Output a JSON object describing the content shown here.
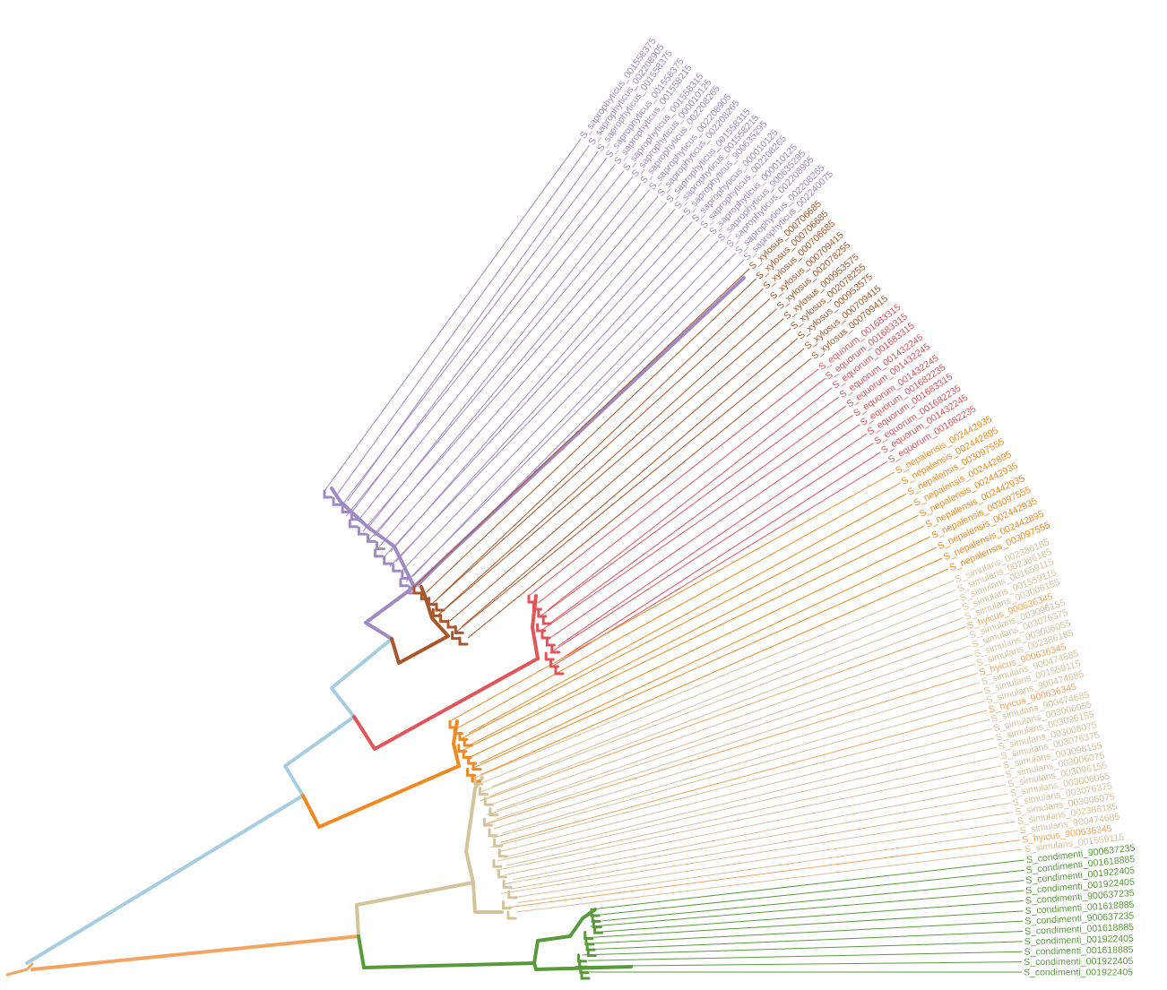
{
  "tree": {
    "clades": [
      {
        "key": "saprophyticus",
        "color": "#a08ac4",
        "labels": [
          "S_saprophyticus_001558375",
          "S_saprophyticus_002208905",
          "S_saprophyticus_001558375",
          "S_saprophyticus_001558375",
          "S_saprophyticus_001558215",
          "S_saprophyticus_001558315",
          "S_saprophyticus_000010125",
          "S_saprophyticus_002208265",
          "S_saprophyticus_002208905",
          "S_saprophyticus_002208265",
          "S_saprophyticus_001558315",
          "S_saprophyticus_001558215",
          "S_saprophyticus_900635295",
          "S_saprophyticus_000010125",
          "S_saprophyticus_002208265",
          "S_saprophyticus_000010125",
          "S_saprophyticus_900635295",
          "S_saprophyticus_002208905",
          "S_saprophyticus_002208265",
          "S_saprophyticus_002240075"
        ]
      },
      {
        "key": "xylosus",
        "color": "#a9572a",
        "labels": [
          "S_xylosus_000706685",
          "S_xylosus_000706685",
          "S_xylosus_000706685",
          "S_xylosus_000709415",
          "S_xylosus_002078255",
          "S_xylosus_000953575",
          "S_xylosus_002078255",
          "S_xylosus_000953575",
          "S_xylosus_000709415",
          "S_xylosus_000709415"
        ]
      },
      {
        "key": "equorum",
        "color": "#e0545a",
        "labels": [
          "S_equorum_001683315",
          "S_equorum_001683315",
          "S_equorum_001683315",
          "S_equorum_001432245",
          "S_equorum_001432245",
          "S_equorum_001432245",
          "S_equorum_001682235",
          "S_equorum_001683315",
          "S_equorum_001682235",
          "S_equorum_001432245",
          "S_equorum_001682235"
        ]
      },
      {
        "key": "nepalensis",
        "color": "#f08a20",
        "labels": [
          "S_nepalensis_002442935",
          "S_nepalensis_002442895",
          "S_nepalensis_003097555",
          "S_nepalensis_002442895",
          "S_nepalensis_002442935",
          "S_nepalensis_002442935",
          "S_nepalensis_003097555",
          "S_nepalensis_002442935",
          "S_nepalensis_002442895",
          "S_nepalensis_003097555"
        ]
      },
      {
        "key": "simulans",
        "color": "#d4c49c",
        "labels": [
          "S_simulans_002386185",
          "S_simulans_002386185",
          "S_simulans_001559115",
          "S_simulans_001559115",
          "S_simulans_003006155",
          "S_hyicus_900636345",
          "S_simulans_003096155",
          "S_simulans_003076375",
          "S_simulans_003006055",
          "S_simulans_002386185",
          "S_hyicus_900636345",
          "S_simulans_900474685",
          "S_simulans_001559115",
          "S_simulans_900474685",
          "S_hyicus_900636345",
          "S_simulans_900474685",
          "S_simulans_003006055",
          "S_simulans_003096155",
          "S_simulans_003006075",
          "S_simulans_003076375",
          "S_simulans_003096155",
          "S_simulans_003006075",
          "S_simulans_003096155",
          "S_simulans_003006055",
          "S_simulans_003076375",
          "S_simulans_003006075",
          "S_simulans_002386185",
          "S_simulans_900474685",
          "S_hyicus_900636345",
          "S_simulans_001559115"
        ]
      },
      {
        "key": "condimenti",
        "color": "#5a9a3c",
        "labels": [
          "S_condimenti_900637235",
          "S_condimenti_001618885",
          "S_condimenti_001922405",
          "S_condimenti_001922405",
          "S_condimenti_900637235",
          "S_condimenti_001618885",
          "S_condimenti_900637235",
          "S_condimenti_001618885",
          "S_condimenti_001922405",
          "S_condimenti_001618885",
          "S_condimenti_001922405",
          "S_condimenti_001922405"
        ]
      }
    ],
    "hyicus_color": "#f2a560",
    "backbone_color": "#a6cde0",
    "root_color": "#f2a560"
  }
}
